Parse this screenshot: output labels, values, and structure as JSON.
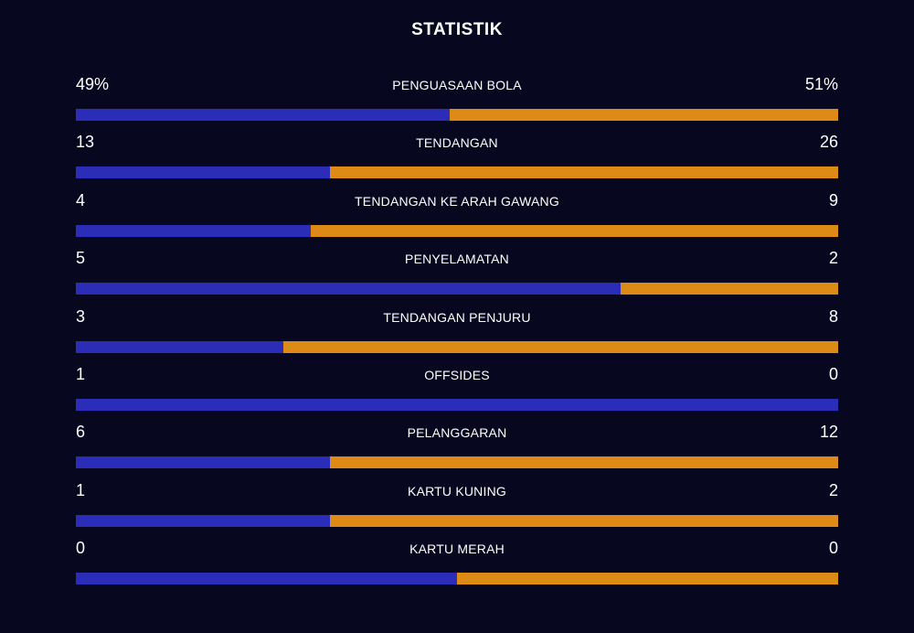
{
  "title": "STATISTIK",
  "colors": {
    "background": "#080720",
    "home": "#2b2db8",
    "away": "#de8a17"
  },
  "stats": [
    {
      "label": "PENGUASAAN BOLA",
      "left": "49%",
      "right": "51%",
      "left_share": 0.49
    },
    {
      "label": "TENDANGAN",
      "left": "13",
      "right": "26",
      "left_share": 0.3333
    },
    {
      "label": "TENDANGAN KE ARAH GAWANG",
      "left": "4",
      "right": "9",
      "left_share": 0.3077
    },
    {
      "label": "PENYELAMATAN",
      "left": "5",
      "right": "2",
      "left_share": 0.7143
    },
    {
      "label": "TENDANGAN PENJURU",
      "left": "3",
      "right": "8",
      "left_share": 0.2727
    },
    {
      "label": "OFFSIDES",
      "left": "1",
      "right": "0",
      "left_share": 1.0
    },
    {
      "label": "PELANGGARAN",
      "left": "6",
      "right": "12",
      "left_share": 0.3333
    },
    {
      "label": "KARTU KUNING",
      "left": "1",
      "right": "2",
      "left_share": 0.3333
    },
    {
      "label": "KARTU MERAH",
      "left": "0",
      "right": "0",
      "left_share": 0.5
    }
  ]
}
